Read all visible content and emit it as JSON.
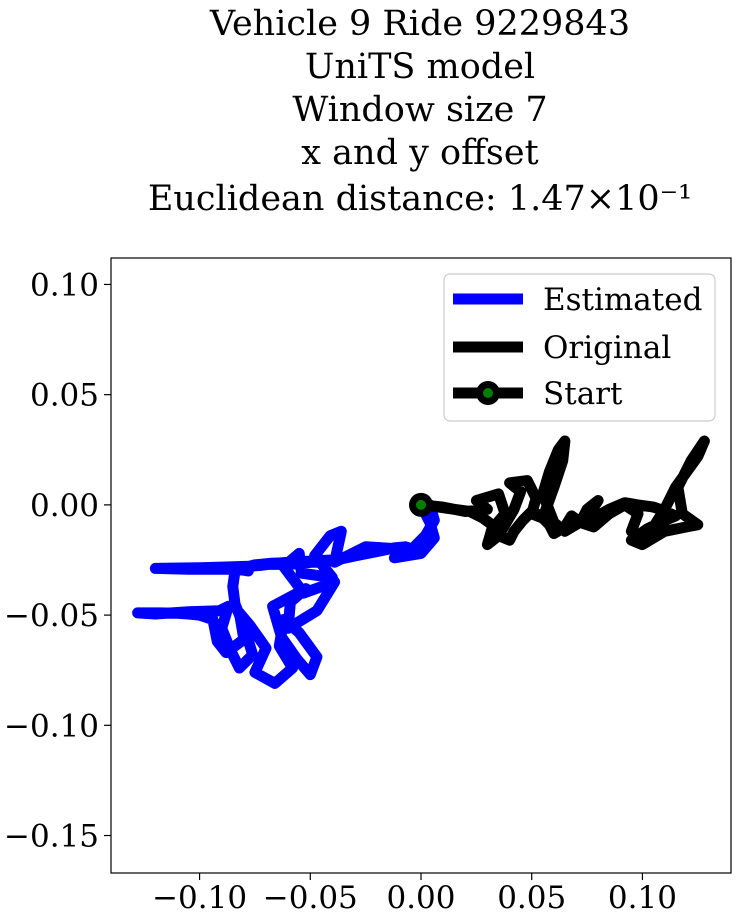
{
  "chart_data": {
    "type": "line",
    "title_lines": [
      "Vehicle 9 Ride 9229843",
      "UniTS model",
      "Window size 7",
      "x and y offset",
      "Euclidean distance: 1.47×10⁻¹"
    ],
    "xlim": [
      -0.14,
      0.14
    ],
    "ylim": [
      -0.167,
      0.112
    ],
    "xticks": [
      -0.1,
      -0.05,
      0.0,
      0.05,
      0.1
    ],
    "xtick_labels": [
      "−0.10",
      "−0.05",
      "0.00",
      "0.05",
      "0.10"
    ],
    "yticks": [
      0.1,
      0.05,
      0.0,
      -0.05,
      -0.1,
      -0.15
    ],
    "ytick_labels": [
      "0.10",
      "0.05",
      "0.00",
      "−0.05",
      "−0.10",
      "−0.15"
    ],
    "grid": false,
    "legend_position": "top-right",
    "series": [
      {
        "name": "Estimated",
        "color": "#0000ff",
        "x": [
          0.0,
          0.004,
          0.006,
          0.0,
          -0.012,
          -0.009,
          -0.025,
          -0.035,
          -0.039,
          -0.036,
          -0.041,
          -0.048,
          -0.04,
          -0.054,
          -0.055,
          -0.062,
          -0.053,
          -0.039,
          -0.047,
          -0.06,
          -0.059,
          -0.052,
          -0.067,
          -0.063,
          -0.056,
          -0.05,
          -0.047,
          -0.055,
          -0.062,
          -0.064,
          -0.058,
          -0.066,
          -0.075,
          -0.07,
          -0.077,
          -0.082,
          -0.08,
          -0.088,
          -0.092,
          -0.094,
          -0.1,
          -0.105,
          -0.11,
          -0.118,
          -0.128,
          -0.12,
          -0.105,
          -0.091,
          -0.087,
          -0.09,
          -0.086,
          -0.082,
          -0.076,
          -0.08,
          -0.084,
          -0.085,
          -0.084,
          -0.082,
          -0.078,
          -0.084,
          -0.08,
          -0.073,
          -0.069,
          -0.06,
          -0.054,
          -0.049,
          -0.043,
          -0.04,
          -0.05,
          -0.058,
          -0.068,
          -0.075,
          -0.08,
          -0.086,
          -0.105,
          -0.12,
          -0.1,
          -0.088,
          -0.078,
          -0.072,
          -0.068,
          -0.062,
          -0.056,
          -0.05,
          -0.044,
          -0.04,
          -0.036,
          -0.03,
          -0.02,
          -0.012,
          -0.007,
          -0.004,
          0.002,
          0.006,
          0.004
        ],
        "y": [
          0.0,
          -0.008,
          -0.015,
          -0.022,
          -0.024,
          -0.02,
          -0.019,
          -0.024,
          -0.026,
          -0.012,
          -0.014,
          -0.023,
          -0.033,
          -0.031,
          -0.022,
          -0.028,
          -0.04,
          -0.035,
          -0.048,
          -0.056,
          -0.044,
          -0.038,
          -0.046,
          -0.06,
          -0.07,
          -0.077,
          -0.069,
          -0.058,
          -0.052,
          -0.064,
          -0.074,
          -0.081,
          -0.076,
          -0.065,
          -0.055,
          -0.049,
          -0.061,
          -0.067,
          -0.062,
          -0.052,
          -0.05,
          -0.0495,
          -0.0492,
          -0.049,
          -0.049,
          -0.0495,
          -0.0485,
          -0.048,
          -0.046,
          -0.056,
          -0.066,
          -0.074,
          -0.068,
          -0.055,
          -0.045,
          -0.037,
          -0.03,
          -0.029,
          -0.03,
          -0.029,
          -0.028,
          -0.0275,
          -0.027,
          -0.027,
          -0.0265,
          -0.026,
          -0.026,
          -0.025,
          -0.0255,
          -0.0262,
          -0.0265,
          -0.0272,
          -0.0285,
          -0.0292,
          -0.0292,
          -0.0288,
          -0.0285,
          -0.0282,
          -0.0278,
          -0.0272,
          -0.0268,
          -0.0262,
          -0.0258,
          -0.0255,
          -0.0252,
          -0.025,
          -0.0245,
          -0.0232,
          -0.0212,
          -0.0195,
          -0.019,
          -0.02,
          -0.014,
          -0.007,
          0.0
        ]
      },
      {
        "name": "Original",
        "color": "#000000",
        "x": [
          0.0,
          0.01,
          0.02,
          0.03,
          0.025,
          0.035,
          0.038,
          0.032,
          0.03,
          0.035,
          0.042,
          0.045,
          0.04,
          0.048,
          0.052,
          0.05,
          0.055,
          0.06,
          0.064,
          0.065,
          0.062,
          0.058,
          0.055,
          0.06,
          0.065,
          0.07,
          0.076,
          0.08,
          0.075,
          0.072,
          0.078,
          0.085,
          0.092,
          0.098,
          0.095,
          0.1,
          0.105,
          0.11,
          0.115,
          0.12,
          0.125,
          0.128,
          0.122,
          0.116,
          0.118,
          0.125,
          0.12,
          0.11,
          0.105,
          0.1,
          0.095,
          0.102,
          0.108,
          0.115,
          0.108,
          0.105,
          0.098,
          0.092,
          0.085,
          0.078,
          0.072,
          0.068,
          0.065,
          0.06,
          0.058,
          0.054,
          0.05,
          0.046,
          0.042,
          0.04,
          0.035,
          0.032,
          0.028,
          0.022,
          0.015,
          0.008,
          0.0
        ],
        "y": [
          0.0,
          -0.001,
          -0.003,
          -0.002,
          0.002,
          0.005,
          -0.004,
          -0.011,
          -0.018,
          -0.014,
          -0.002,
          0.006,
          0.01,
          0.011,
          0.003,
          -0.004,
          -0.006,
          0.008,
          0.02,
          0.029,
          0.025,
          0.015,
          0.005,
          -0.008,
          -0.012,
          -0.009,
          -0.004,
          0.002,
          -0.002,
          -0.008,
          -0.01,
          -0.004,
          0.0,
          -0.004,
          -0.012,
          -0.015,
          -0.01,
          -0.002,
          0.008,
          0.015,
          0.022,
          0.029,
          0.02,
          0.008,
          -0.004,
          -0.009,
          -0.01,
          -0.012,
          -0.015,
          -0.018,
          -0.016,
          -0.011,
          -0.008,
          -0.005,
          -0.002,
          -0.001,
          0.0,
          0.001,
          -0.002,
          -0.006,
          -0.008,
          -0.005,
          -0.01,
          -0.013,
          -0.009,
          -0.005,
          -0.003,
          -0.007,
          -0.012,
          -0.016,
          -0.014,
          -0.009,
          -0.006,
          -0.003,
          -0.002,
          -0.001,
          0.0
        ]
      }
    ],
    "start_point": {
      "x": 0.0,
      "y": 0.0,
      "marker_face": "#008000",
      "marker_edge": "#000000"
    },
    "legend": [
      {
        "label": "Estimated",
        "style": "line",
        "color": "#0000ff"
      },
      {
        "label": "Original",
        "style": "line",
        "color": "#000000"
      },
      {
        "label": "Start",
        "style": "marker",
        "color": "#000000",
        "marker_face": "#008000"
      }
    ]
  }
}
